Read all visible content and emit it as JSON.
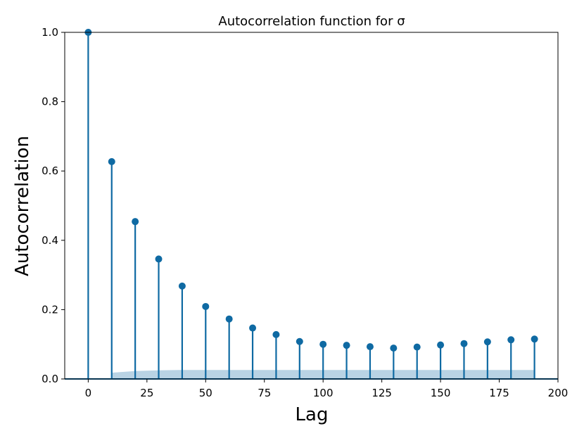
{
  "chart_data": {
    "type": "stem",
    "title": "Autocorrelation function for σ",
    "xlabel": "Lag",
    "ylabel": "Autocorrelation",
    "xlim": [
      -10,
      200
    ],
    "ylim": [
      0.0,
      1.0
    ],
    "x_ticks": [
      0,
      25,
      50,
      75,
      100,
      125,
      150,
      175,
      200
    ],
    "y_ticks": [
      0.0,
      0.2,
      0.4,
      0.6,
      0.8,
      1.0
    ],
    "y_tick_labels": [
      "0.0",
      "0.2",
      "0.4",
      "0.6",
      "0.8",
      "1.0"
    ],
    "grid": false,
    "x": [
      0,
      10,
      20,
      30,
      40,
      50,
      60,
      70,
      80,
      90,
      100,
      110,
      120,
      130,
      140,
      150,
      160,
      170,
      180,
      190
    ],
    "values": [
      1.0,
      0.627,
      0.454,
      0.346,
      0.268,
      0.209,
      0.173,
      0.147,
      0.128,
      0.108,
      0.1,
      0.097,
      0.093,
      0.089,
      0.092,
      0.098,
      0.102,
      0.107,
      0.113,
      0.115
    ],
    "confidence_band": {
      "x": [
        10,
        20,
        30,
        40,
        50,
        190
      ],
      "upper": [
        0.018,
        0.023,
        0.025,
        0.026,
        0.026,
        0.026
      ],
      "lower": [
        0.0,
        0.0,
        0.0,
        0.0,
        0.0,
        0.0
      ]
    },
    "colors": {
      "stem": "#0f6aa3",
      "marker": "#0f6aa3",
      "band": "#b9d3e4",
      "axes": "#000000"
    }
  }
}
